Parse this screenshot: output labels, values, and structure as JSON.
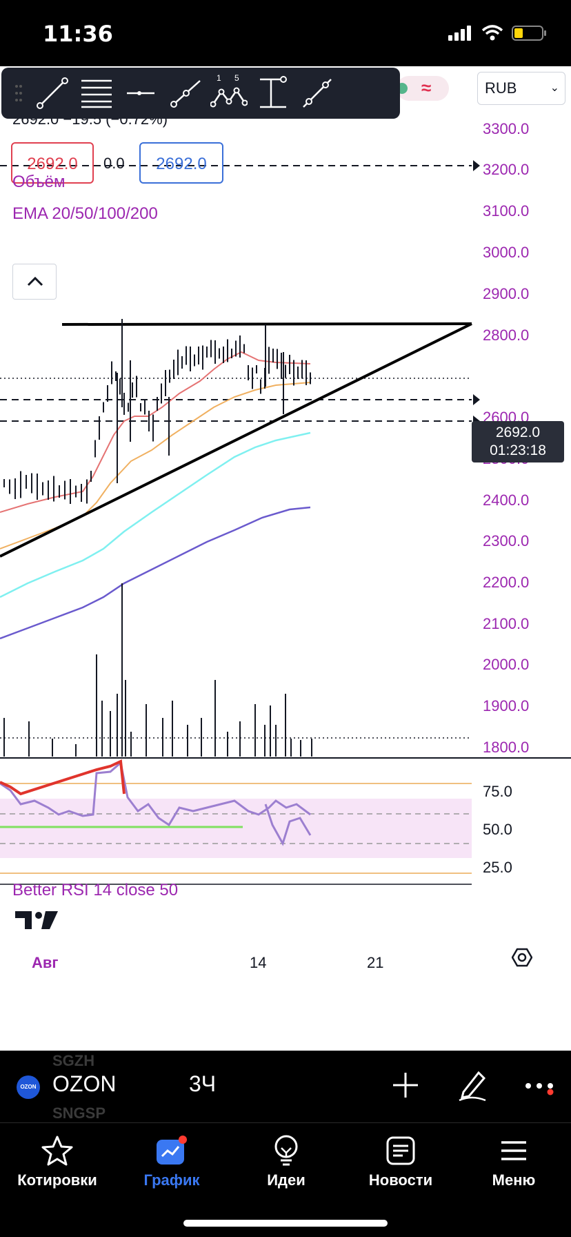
{
  "status_bar": {
    "time": "11:36"
  },
  "toolbar": {
    "tools": [
      "trend-line",
      "fib-retracement",
      "horizontal-line",
      "ray",
      "pattern",
      "price-range",
      "parallel-channel"
    ],
    "pattern_marks": [
      "1",
      "5"
    ]
  },
  "currency": {
    "selected": "RUB"
  },
  "legend": {
    "change": "2692.0  −19.5 (−0.72%)",
    "bid": "2692.0",
    "spread": "0.0",
    "ask": "2692.0"
  },
  "indicators": {
    "volume": "Объём",
    "ema": "EMA 20/50/100/200"
  },
  "price_axis": {
    "labels": [
      "3300.0",
      "3200.0",
      "3100.0",
      "3000.0",
      "2900.0",
      "2800.0",
      "2600.0",
      "2500.0",
      "2400.0",
      "2300.0",
      "2200.0",
      "2100.0",
      "2000.0",
      "1900.0",
      "1800.0"
    ]
  },
  "last_price": {
    "price": "2692.0",
    "countdown": "01:23:18"
  },
  "rsi": {
    "title": "Better RSI 14 close 50",
    "axis": [
      "75.0",
      "50.0",
      "25.0"
    ]
  },
  "time_axis": {
    "labels": [
      "Авг",
      "14",
      "21"
    ]
  },
  "symbol": {
    "ticker": "OZON",
    "logo_text": "OZON",
    "interval": "3Ч",
    "ghost_above": "SGZH",
    "ghost_below": "SNGSP"
  },
  "tabs": [
    {
      "label": "Котировки"
    },
    {
      "label": "График"
    },
    {
      "label": "Идеи"
    },
    {
      "label": "Новости"
    },
    {
      "label": "Меню"
    }
  ],
  "colors": {
    "ema20": "#e57373",
    "ema50": "#f0b060",
    "ema100": "#7ff0f0",
    "ema200": "#6a5acd",
    "rsi": "#9c7fd0",
    "accent": "#3a78f2"
  }
}
